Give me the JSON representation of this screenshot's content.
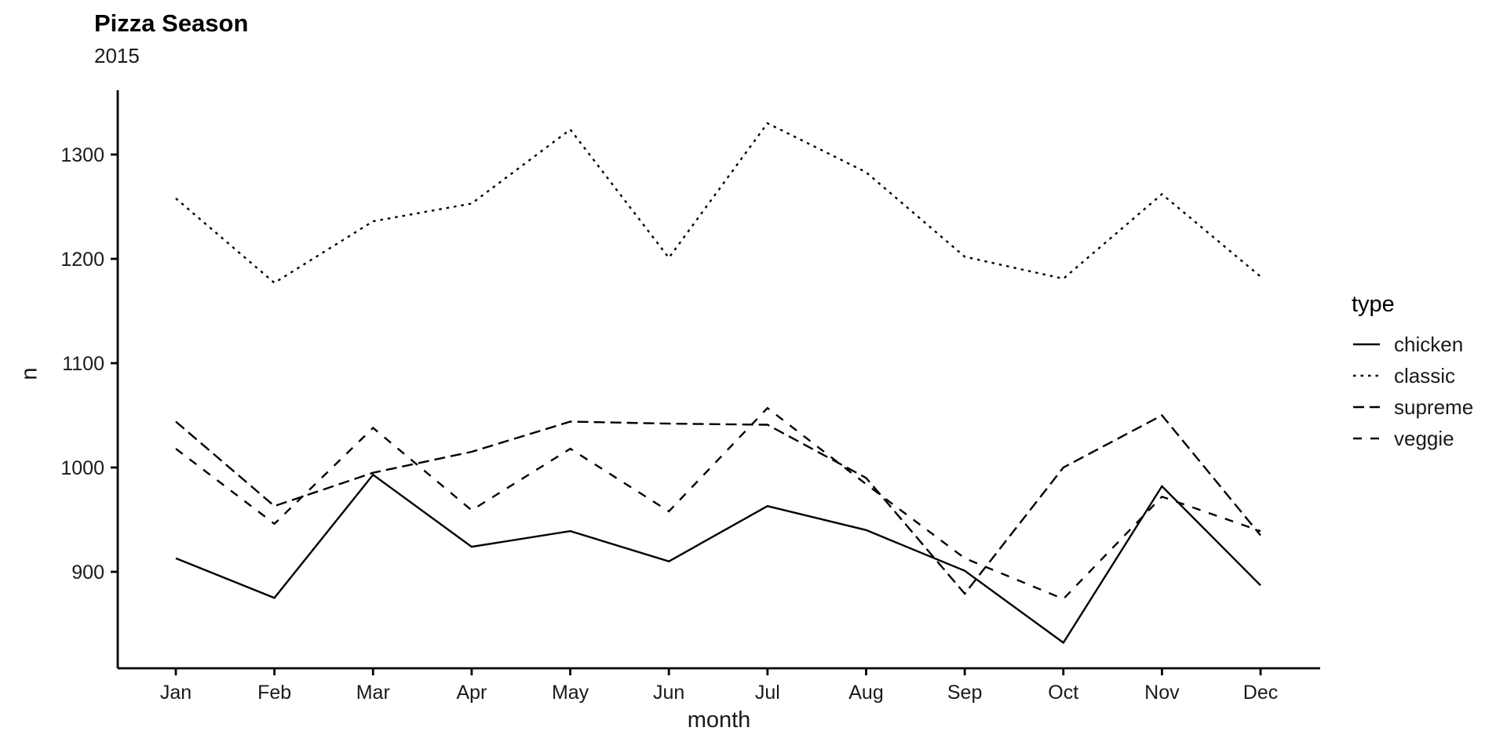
{
  "page": {
    "background": "#ffffff",
    "line_color": "#000000"
  },
  "header": {
    "title": "Pizza Season",
    "subtitle": "2015"
  },
  "chart_data": {
    "type": "line",
    "title": "Pizza Season",
    "subtitle": "2015",
    "xlabel": "month",
    "ylabel": "n",
    "categories": [
      "Jan",
      "Feb",
      "Mar",
      "Apr",
      "May",
      "Jun",
      "Jul",
      "Aug",
      "Sep",
      "Oct",
      "Nov",
      "Dec"
    ],
    "y_ticks": [
      900,
      1000,
      1100,
      1200,
      1300
    ],
    "ylim": [
      807,
      1362
    ],
    "grid": false,
    "legend": {
      "title": "type",
      "position": "right"
    },
    "series": [
      {
        "name": "chicken",
        "linetype": "solid",
        "dash": "",
        "values": [
          913,
          875,
          993,
          924,
          939,
          910,
          963,
          940,
          901,
          832,
          982,
          887
        ]
      },
      {
        "name": "classic",
        "linetype": "dotted",
        "dash": "3.5,6",
        "values": [
          1258,
          1177,
          1236,
          1253,
          1324,
          1201,
          1330,
          1283,
          1202,
          1181,
          1262,
          1183
        ]
      },
      {
        "name": "supreme",
        "linetype": "dashed",
        "dash": "14,7",
        "values": [
          1044,
          963,
          995,
          1015,
          1044,
          1042,
          1041,
          990,
          879,
          1000,
          1050,
          935
        ]
      },
      {
        "name": "veggie",
        "linetype": "longdash",
        "dash": "11,11",
        "values": [
          1018,
          946,
          1038,
          959,
          1018,
          958,
          1057,
          984,
          913,
          874,
          972,
          939
        ]
      }
    ]
  }
}
